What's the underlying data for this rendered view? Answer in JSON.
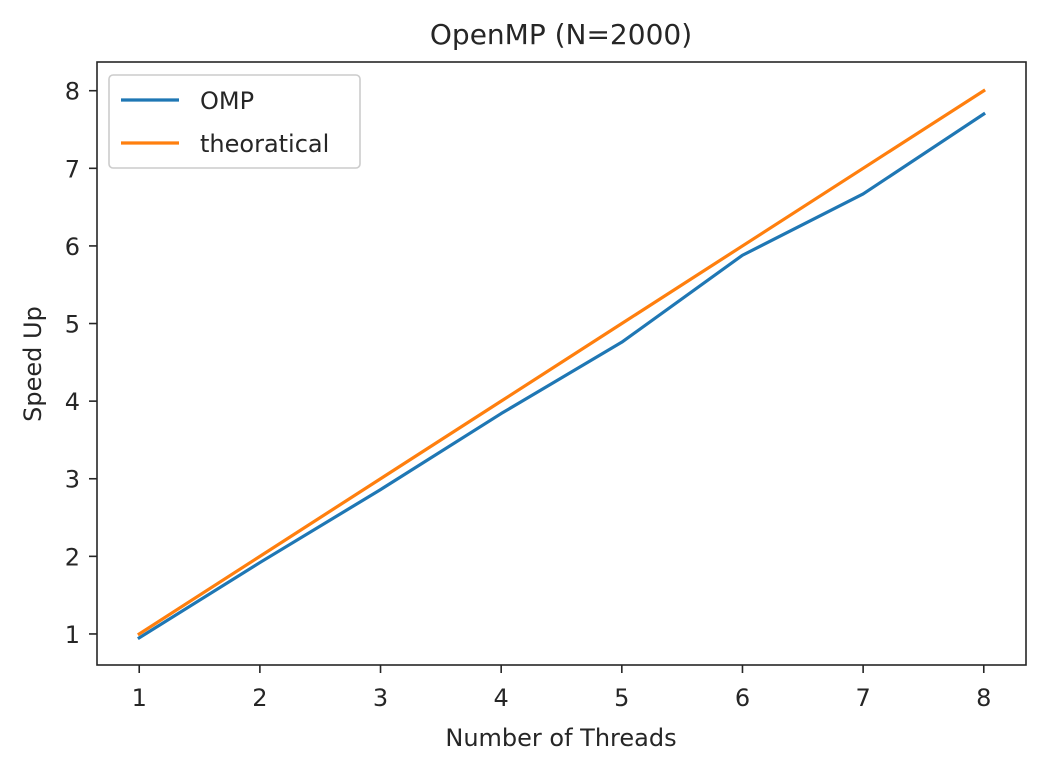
{
  "chart_data": {
    "type": "line",
    "title": "OpenMP (N=2000)",
    "xlabel": "Number of Threads",
    "ylabel": "Speed Up",
    "x": [
      1,
      2,
      3,
      4,
      5,
      6,
      7,
      8
    ],
    "xlim": [
      0.65,
      8.35
    ],
    "ylim": [
      0.6,
      8.37
    ],
    "xticks": [
      1,
      2,
      3,
      4,
      5,
      6,
      7,
      8
    ],
    "yticks": [
      1,
      2,
      3,
      4,
      5,
      6,
      7,
      8
    ],
    "grid": false,
    "legend_position": "top-left",
    "series": [
      {
        "name": "OMP",
        "color": "#1f77b4",
        "values": [
          0.95,
          1.92,
          2.86,
          3.84,
          4.76,
          5.88,
          6.67,
          7.7
        ]
      },
      {
        "name": "theoratical",
        "color": "#ff7f0e",
        "values": [
          1,
          2,
          3,
          4,
          5,
          6,
          7,
          8
        ]
      }
    ]
  }
}
